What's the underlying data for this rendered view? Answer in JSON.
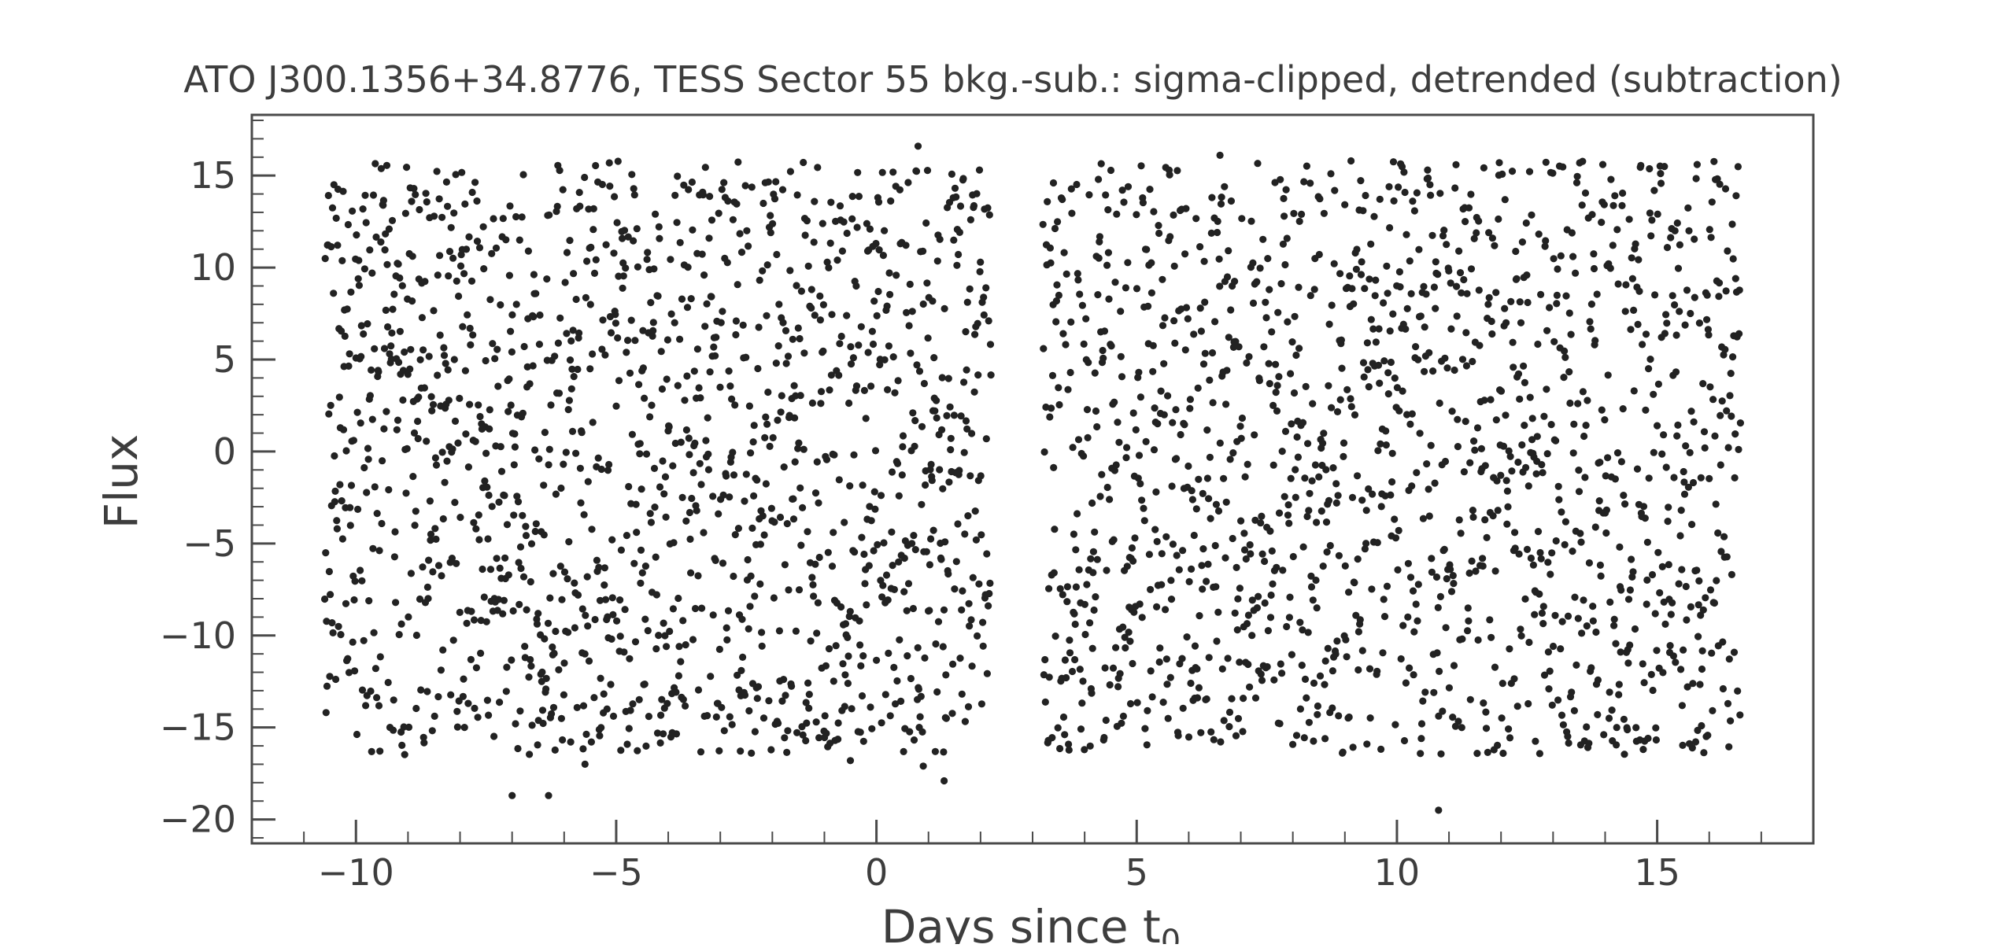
{
  "chart_data": {
    "type": "scatter",
    "title": "ATO J300.1356+34.8776, TESS Sector 55 bkg.-sub.: sigma-clipped, detrended (subtraction)",
    "xlabel": "Days since t",
    "xlabel_subscript": "0",
    "ylabel": "Flux",
    "xlim": [
      -12,
      18
    ],
    "ylim": [
      -21.3,
      18.3
    ],
    "grid": false,
    "legend": "none",
    "colors": {
      "points": "#222222",
      "axes": "#4a4a4a",
      "text": "#3d3d3d"
    },
    "x_ticks": [
      {
        "value": -10,
        "label": "−10"
      },
      {
        "value": -5,
        "label": "−5"
      },
      {
        "value": 0,
        "label": "0"
      },
      {
        "value": 5,
        "label": "5"
      },
      {
        "value": 10,
        "label": "10"
      },
      {
        "value": 15,
        "label": "15"
      }
    ],
    "y_ticks": [
      {
        "value": 15,
        "label": "15"
      },
      {
        "value": 10,
        "label": "10"
      },
      {
        "value": 5,
        "label": "5"
      },
      {
        "value": 0,
        "label": "0"
      },
      {
        "value": -5,
        "label": "−5"
      },
      {
        "value": -10,
        "label": "−10"
      },
      {
        "value": -15,
        "label": "−15"
      },
      {
        "value": -20,
        "label": "−20"
      }
    ],
    "segments": [
      {
        "x_range": [
          -10.6,
          2.2
        ],
        "y_range": [
          -16.5,
          15.8
        ],
        "n_points": 1450
      },
      {
        "x_range": [
          3.2,
          16.6
        ],
        "y_range": [
          -16.5,
          15.8
        ],
        "n_points": 1450
      }
    ],
    "outliers": [
      {
        "x": 0.8,
        "y": 16.6
      },
      {
        "x": 6.6,
        "y": 16.1
      },
      {
        "x": -7.0,
        "y": -18.7
      },
      {
        "x": -6.3,
        "y": -18.7
      },
      {
        "x": 1.3,
        "y": -17.9
      },
      {
        "x": 0.9,
        "y": -17.1
      },
      {
        "x": -5.6,
        "y": -17.0
      },
      {
        "x": 10.8,
        "y": -19.5
      },
      {
        "x": 3.4,
        "y": 14.6
      },
      {
        "x": -0.5,
        "y": -16.8
      }
    ]
  }
}
